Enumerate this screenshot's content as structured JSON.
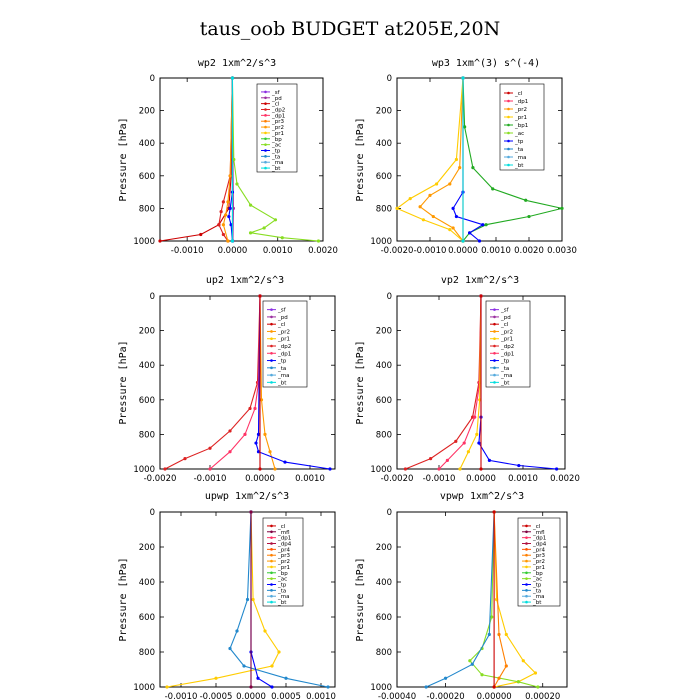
{
  "page_title": "taus_oob  BUDGET at205E,20N",
  "colors": {
    "sf": "#8a2be2",
    "pd": "#9b30a0",
    "cl": "#cc0000",
    "mfl": "#800040",
    "dp4": "#b01040",
    "dp3": "#cc1a5a",
    "dp2": "#dd2222",
    "dp1": "#ff3366",
    "pr4": "#ff5500",
    "pr3": "#ff7f00",
    "pr2": "#ff9900",
    "pr1": "#ffcc00",
    "bp": "#33cc33",
    "bp1": "#22aa22",
    "ac": "#88dd22",
    "tp": "#0000ff",
    "ta": "#2288cc",
    "ma": "#55aadd",
    "bt": "#00dddd"
  },
  "chart_data": [
    {
      "type": "line",
      "title": "wp2  1xm^2/s^3",
      "ylabel": "Pressure [hPa]",
      "ylim": [
        1000,
        0
      ],
      "xlim": [
        -0.0016,
        0.002
      ],
      "xticks": [
        -0.001,
        0.0,
        0.001,
        0.002
      ],
      "xtick_labels": [
        "-0.0010",
        "0.0000",
        "0.0010",
        "0.0020"
      ],
      "yticks": [
        0,
        200,
        400,
        600,
        800,
        1000
      ],
      "legend": [
        "_sf",
        "_pd",
        "_cl",
        "_dp2",
        "_dp1",
        "_pr3",
        "_pr2",
        "_pr1",
        "_bp",
        "_ac",
        "_tp",
        "_ta",
        "_ma",
        "_bt"
      ],
      "series": [
        {
          "name": "_pd",
          "points": [
            [
              0,
              0
            ],
            [
              1e-05,
              500
            ],
            [
              2e-05,
              800
            ],
            [
              1e-05,
              1000
            ]
          ]
        },
        {
          "name": "_cl",
          "points": [
            [
              0,
              0
            ],
            [
              -3e-05,
              600
            ],
            [
              -8e-05,
              800
            ],
            [
              -0.0003,
              900
            ],
            [
              -0.0007,
              960
            ],
            [
              -0.0016,
              1000
            ]
          ]
        },
        {
          "name": "_dp2",
          "points": [
            [
              0,
              0
            ],
            [
              -5e-05,
              600
            ],
            [
              -0.0002,
              760
            ],
            [
              -0.00025,
              820
            ],
            [
              -0.0003,
              900
            ],
            [
              -0.0002,
              960
            ],
            [
              -0.0001,
              1000
            ]
          ]
        },
        {
          "name": "_pr2",
          "points": [
            [
              0,
              0
            ],
            [
              -5e-05,
              600
            ],
            [
              -0.0001,
              760
            ],
            [
              -0.00015,
              840
            ],
            [
              -0.0002,
              900
            ],
            [
              -0.0001,
              1000
            ]
          ]
        },
        {
          "name": "_ac",
          "points": [
            [
              0,
              0
            ],
            [
              3e-05,
              500
            ],
            [
              0.0001,
              650
            ],
            [
              0.0004,
              780
            ],
            [
              0.00095,
              870
            ],
            [
              0.0007,
              920
            ],
            [
              0.0004,
              950
            ],
            [
              0.0011,
              980
            ],
            [
              0.0019,
              1000
            ]
          ]
        },
        {
          "name": "_tp",
          "points": [
            [
              0,
              0
            ],
            [
              0,
              700
            ],
            [
              -5e-05,
              800
            ],
            [
              -8e-05,
              850
            ],
            [
              -3e-05,
              900
            ],
            [
              0,
              1000
            ]
          ]
        },
        {
          "name": "_bt",
          "points": [
            [
              0,
              0
            ],
            [
              0,
              1000
            ]
          ]
        }
      ]
    },
    {
      "type": "line",
      "title": "wp3  1xm^(3) s^(-4)",
      "ylabel": "Pressure [hPa]",
      "ylim": [
        1000,
        0
      ],
      "xlim": [
        -0.002,
        0.003
      ],
      "xticks": [
        -0.002,
        -0.001,
        0.0,
        0.001,
        0.002,
        0.003
      ],
      "xtick_labels": [
        "-0.0020",
        "-0.0010",
        "0.0000",
        "0.0010",
        "0.0020",
        "0.0030"
      ],
      "yticks": [
        0,
        200,
        400,
        600,
        800,
        1000
      ],
      "legend": [
        "_cl",
        "_dp1",
        "_pr2",
        "_pr1",
        "_bp1",
        "_ac",
        "_tp",
        "_ta",
        "_ma",
        "_bt"
      ],
      "series": [
        {
          "name": "_cl",
          "points": [
            [
              0,
              0
            ],
            [
              0,
              1000
            ]
          ]
        },
        {
          "name": "_pr2",
          "points": [
            [
              0,
              0
            ],
            [
              -0.0001,
              550
            ],
            [
              -0.0004,
              650
            ],
            [
              -0.001,
              720
            ],
            [
              -0.0013,
              790
            ],
            [
              -0.0009,
              850
            ],
            [
              -0.0003,
              920
            ],
            [
              0,
              1000
            ]
          ]
        },
        {
          "name": "_pr1",
          "points": [
            [
              0,
              0
            ],
            [
              -0.0002,
              500
            ],
            [
              -0.0008,
              650
            ],
            [
              -0.0016,
              740
            ],
            [
              -0.002,
              800
            ],
            [
              -0.0012,
              870
            ],
            [
              -0.0004,
              930
            ],
            [
              0,
              1000
            ]
          ]
        },
        {
          "name": "_bp1",
          "points": [
            [
              0,
              0
            ],
            [
              5e-05,
              300
            ],
            [
              0.0003,
              550
            ],
            [
              0.0009,
              680
            ],
            [
              0.0019,
              750
            ],
            [
              0.003,
              800
            ],
            [
              0.002,
              850
            ],
            [
              0.0007,
              900
            ],
            [
              0.0002,
              950
            ],
            [
              0,
              1000
            ]
          ]
        },
        {
          "name": "_tp",
          "points": [
            [
              0,
              0
            ],
            [
              0,
              700
            ],
            [
              -0.0003,
              800
            ],
            [
              -0.0002,
              850
            ],
            [
              0.0006,
              900
            ],
            [
              0.0002,
              950
            ],
            [
              0.0005,
              1000
            ]
          ]
        },
        {
          "name": "_bt",
          "points": [
            [
              0,
              0
            ],
            [
              0,
              1000
            ]
          ]
        }
      ]
    },
    {
      "type": "line",
      "title": "up2  1xm^2/s^3",
      "ylabel": "Pressure [hPa]",
      "ylim": [
        1000,
        0
      ],
      "xlim": [
        -0.002,
        0.0015
      ],
      "xticks": [
        -0.002,
        -0.001,
        0.0,
        0.001
      ],
      "xtick_labels": [
        "-0.0020",
        "-0.0010",
        "0.0000",
        "0.0010"
      ],
      "yticks": [
        0,
        200,
        400,
        600,
        800,
        1000
      ],
      "legend": [
        "_sf",
        "_pd",
        "_cl",
        "_pr2",
        "_pr1",
        "_dp2",
        "_dp1",
        "_tp",
        "_ta",
        "_ma",
        "_bt"
      ],
      "series": [
        {
          "name": "_dp2",
          "points": [
            [
              0,
              0
            ],
            [
              -5e-05,
              500
            ],
            [
              -0.0002,
              650
            ],
            [
              -0.0006,
              780
            ],
            [
              -0.001,
              880
            ],
            [
              -0.0015,
              940
            ],
            [
              -0.0019,
              1000
            ]
          ]
        },
        {
          "name": "_dp1",
          "points": [
            [
              0,
              0
            ],
            [
              -3e-05,
              500
            ],
            [
              -0.0001,
              650
            ],
            [
              -0.0003,
              800
            ],
            [
              -0.0006,
              900
            ],
            [
              -0.001,
              1000
            ]
          ]
        },
        {
          "name": "_pr2",
          "points": [
            [
              0,
              0
            ],
            [
              3e-05,
              600
            ],
            [
              0.0001,
              800
            ],
            [
              0.0002,
              900
            ],
            [
              0.0003,
              1000
            ]
          ]
        },
        {
          "name": "_tp",
          "points": [
            [
              0,
              0
            ],
            [
              -3e-05,
              800
            ],
            [
              -8e-05,
              850
            ],
            [
              -3e-05,
              900
            ],
            [
              0.0005,
              960
            ],
            [
              0.0014,
              1000
            ]
          ]
        },
        {
          "name": "_cl",
          "points": [
            [
              0,
              0
            ],
            [
              0,
              1000
            ]
          ]
        }
      ]
    },
    {
      "type": "line",
      "title": "vp2  1xm^2/s^3",
      "ylabel": "Pressure [hPa]",
      "ylim": [
        1000,
        0
      ],
      "xlim": [
        -0.002,
        0.002
      ],
      "xticks": [
        -0.002,
        -0.001,
        0.0,
        0.001,
        0.002
      ],
      "xtick_labels": [
        "-0.0020",
        "-0.0010",
        "0.0000",
        "0.0010",
        "0.0020"
      ],
      "yticks": [
        0,
        200,
        400,
        600,
        800,
        1000
      ],
      "legend": [
        "_sf",
        "_pd",
        "_cl",
        "_pr2",
        "_pr1",
        "_dp2",
        "_dp1",
        "_tp",
        "_ta",
        "_ma",
        "_bt"
      ],
      "series": [
        {
          "name": "_dp2",
          "points": [
            [
              0,
              0
            ],
            [
              -5e-05,
              500
            ],
            [
              -0.0002,
              700
            ],
            [
              -0.0006,
              840
            ],
            [
              -0.0012,
              940
            ],
            [
              -0.0018,
              1000
            ]
          ]
        },
        {
          "name": "_dp1",
          "points": [
            [
              0,
              0
            ],
            [
              -3e-05,
              500
            ],
            [
              -0.00015,
              700
            ],
            [
              -0.0004,
              850
            ],
            [
              -0.0008,
              950
            ],
            [
              -0.001,
              1000
            ]
          ]
        },
        {
          "name": "_pr1",
          "points": [
            [
              0,
              0
            ],
            [
              -3e-05,
              600
            ],
            [
              -0.0001,
              800
            ],
            [
              -0.0003,
              900
            ],
            [
              -0.0005,
              1000
            ]
          ]
        },
        {
          "name": "_tp",
          "points": [
            [
              0,
              0
            ],
            [
              0,
              700
            ],
            [
              -5e-05,
              850
            ],
            [
              0.0002,
              950
            ],
            [
              0.0009,
              980
            ],
            [
              0.0018,
              1000
            ]
          ]
        },
        {
          "name": "_cl",
          "points": [
            [
              0,
              0
            ],
            [
              0,
              1000
            ]
          ]
        }
      ]
    },
    {
      "type": "line",
      "title": "upwp  1xm^2/s^3",
      "ylabel": "Pressure [hPa]",
      "ylim": [
        1000,
        0
      ],
      "xlim": [
        -0.0013,
        0.0012
      ],
      "xticks": [
        -0.001,
        -0.0005,
        0.0,
        0.0005,
        0.001
      ],
      "xtick_labels": [
        "-0.0010",
        "-0.0005",
        "0.0000",
        "0.0005",
        "0.0010"
      ],
      "yticks": [
        0,
        200,
        400,
        600,
        800,
        1000
      ],
      "legend": [
        "_cl",
        "_mfl",
        "_dp1",
        "_dp4",
        "_pr4",
        "_pr3",
        "_pr2",
        "_pr1",
        "_bp",
        "_ac",
        "_tp",
        "_ta",
        "_ma",
        "_bt"
      ],
      "series": [
        {
          "name": "_pr1",
          "points": [
            [
              0,
              0
            ],
            [
              3e-05,
              500
            ],
            [
              0.0002,
              680
            ],
            [
              0.0004,
              800
            ],
            [
              0.0003,
              880
            ],
            [
              -0.0005,
              950
            ],
            [
              -0.0012,
              1000
            ]
          ]
        },
        {
          "name": "_ta",
          "points": [
            [
              0,
              0
            ],
            [
              -5e-05,
              500
            ],
            [
              -0.0002,
              680
            ],
            [
              -0.0003,
              780
            ],
            [
              -0.0001,
              880
            ],
            [
              0.0005,
              950
            ],
            [
              0.0011,
              1000
            ]
          ]
        },
        {
          "name": "_tp",
          "points": [
            [
              0,
              0
            ],
            [
              0,
              800
            ],
            [
              0.0001,
              950
            ],
            [
              0.0003,
              1000
            ]
          ]
        },
        {
          "name": "_mfl",
          "points": [
            [
              0,
              0
            ],
            [
              0,
              1000
            ]
          ]
        }
      ]
    },
    {
      "type": "line",
      "title": "vpwp  1xm^2/s^3",
      "ylabel": "Pressure [hPa]",
      "ylim": [
        1000,
        0
      ],
      "xlim": [
        -0.0004,
        0.0003
      ],
      "xticks": [
        -0.0004,
        -0.0002,
        0.0,
        0.0002
      ],
      "xtick_labels": [
        "-0.00040",
        "-0.00020",
        "0.00000",
        "0.00020"
      ],
      "yticks": [
        0,
        200,
        400,
        600,
        800,
        1000
      ],
      "legend": [
        "_cl",
        "_mfl",
        "_dp1",
        "_dp4",
        "_pr4",
        "_pr3",
        "_pr2",
        "_pr1",
        "_bp",
        "_ac",
        "_tp",
        "_ta",
        "_ma",
        "_bt"
      ],
      "series": [
        {
          "name": "_pr1",
          "points": [
            [
              0,
              0
            ],
            [
              1e-05,
              500
            ],
            [
              5e-05,
              700
            ],
            [
              0.00012,
              850
            ],
            [
              0.00017,
              920
            ],
            [
              0.0001,
              970
            ],
            [
              0,
              1000
            ]
          ]
        },
        {
          "name": "_ac",
          "points": [
            [
              0,
              0
            ],
            [
              -1e-05,
              600
            ],
            [
              -5e-05,
              780
            ],
            [
              -0.0001,
              850
            ],
            [
              -5e-05,
              930
            ],
            [
              0.0001,
              970
            ],
            [
              0.00018,
              1000
            ]
          ]
        },
        {
          "name": "_ta",
          "points": [
            [
              0,
              0
            ],
            [
              -2e-05,
              700
            ],
            [
              -9e-05,
              870
            ],
            [
              -0.0002,
              950
            ],
            [
              -0.00028,
              1000
            ]
          ]
        },
        {
          "name": "_pr3",
          "points": [
            [
              0,
              0
            ],
            [
              2e-05,
              700
            ],
            [
              5e-05,
              880
            ],
            [
              2e-05,
              950
            ],
            [
              0,
              1000
            ]
          ]
        },
        {
          "name": "_cl",
          "points": [
            [
              0,
              0
            ],
            [
              0,
              1000
            ]
          ]
        }
      ]
    }
  ]
}
